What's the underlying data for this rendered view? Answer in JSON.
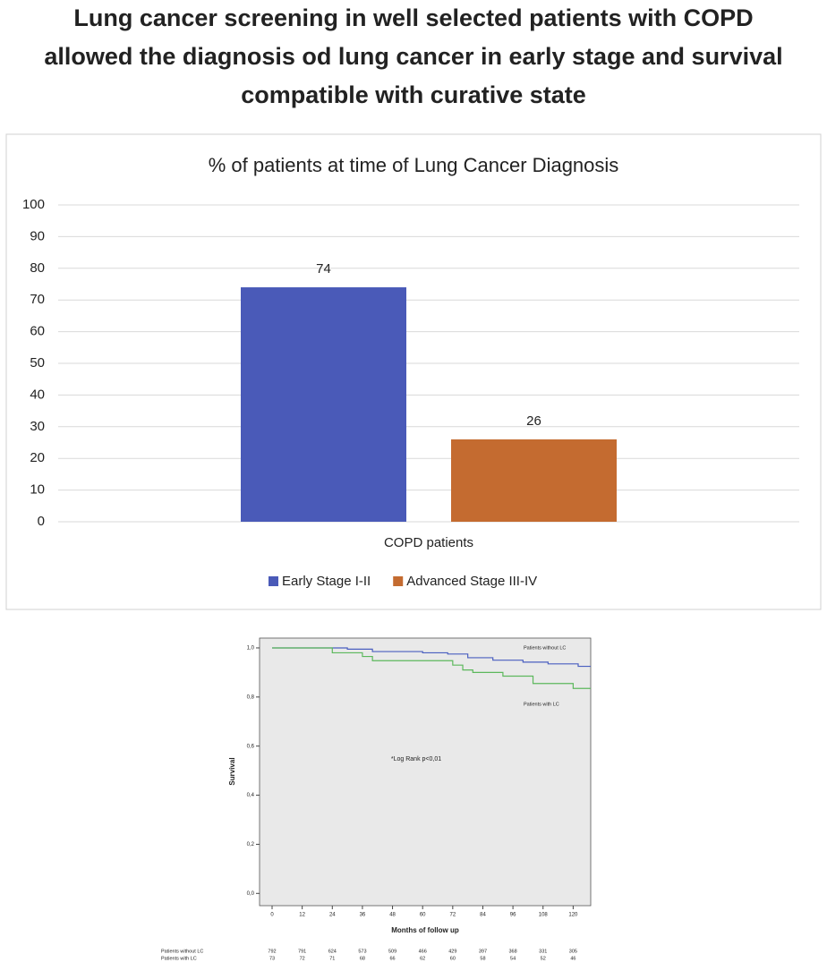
{
  "title": [
    "Lung cancer screening in well selected patients with COPD",
    "allowed the diagnosis od lung cancer in early stage and survival",
    "compatible with curative state"
  ],
  "chart_data": [
    {
      "type": "bar",
      "title": "% of patients at time of Lung Cancer Diagnosis",
      "categories": [
        "COPD patients"
      ],
      "series": [
        {
          "name": "Early Stage I-II",
          "color": "#4a5ab8",
          "values": [
            74
          ]
        },
        {
          "name": "Advanced Stage III-IV",
          "color": "#c46b30",
          "values": [
            26
          ]
        }
      ],
      "ylim": [
        0,
        100
      ],
      "yticks": [
        0,
        10,
        20,
        30,
        40,
        50,
        60,
        70,
        80,
        90,
        100
      ],
      "grid": true,
      "legend": "bottom"
    },
    {
      "type": "line",
      "step": true,
      "xlabel": "Months of follow up",
      "ylabel": "Survival",
      "annotation": "*Log Rank p<0,01",
      "xlim": [
        -5,
        127
      ],
      "ylim": [
        -0.05,
        1.04
      ],
      "xticks": [
        0,
        12,
        24,
        36,
        48,
        60,
        72,
        84,
        96,
        108,
        120
      ],
      "yticks": [
        {
          "value": 0,
          "label": "0,0"
        },
        {
          "value": 0.2,
          "label": "0,2"
        },
        {
          "value": 0.4,
          "label": "0,4"
        },
        {
          "value": 0.6,
          "label": "0,6"
        },
        {
          "value": 0.8,
          "label": "0,8"
        },
        {
          "value": 1,
          "label": "1,0"
        }
      ],
      "series": [
        {
          "name": "Patients without LC",
          "color": "#4a5fc0",
          "x": [
            0,
            30,
            30,
            40,
            40,
            60,
            60,
            70,
            70,
            78,
            78,
            88,
            88,
            100,
            100,
            110,
            110,
            122,
            122,
            127
          ],
          "values": [
            1,
            1,
            0.995,
            0.995,
            0.985,
            0.985,
            0.98,
            0.98,
            0.975,
            0.975,
            0.96,
            0.96,
            0.95,
            0.95,
            0.942,
            0.942,
            0.935,
            0.935,
            0.925,
            0.925
          ]
        },
        {
          "name": "Patients with LC",
          "color": "#5cb85c",
          "x": [
            0,
            24,
            24,
            36,
            36,
            40,
            40,
            72,
            72,
            76,
            76,
            80,
            80,
            92,
            92,
            104,
            104,
            120,
            120,
            127
          ],
          "values": [
            1,
            1,
            0.98,
            0.98,
            0.965,
            0.965,
            0.948,
            0.948,
            0.93,
            0.93,
            0.91,
            0.91,
            0.9,
            0.9,
            0.885,
            0.885,
            0.855,
            0.855,
            0.835,
            0.835
          ]
        }
      ],
      "risk_table": [
        {
          "label": "Patients without LC",
          "values": [
            792,
            791,
            624,
            573,
            509,
            466,
            429,
            397,
            368,
            331,
            305
          ]
        },
        {
          "label": "Patients with LC",
          "values": [
            73,
            72,
            71,
            68,
            66,
            62,
            60,
            58,
            54,
            52,
            46
          ]
        }
      ]
    }
  ]
}
